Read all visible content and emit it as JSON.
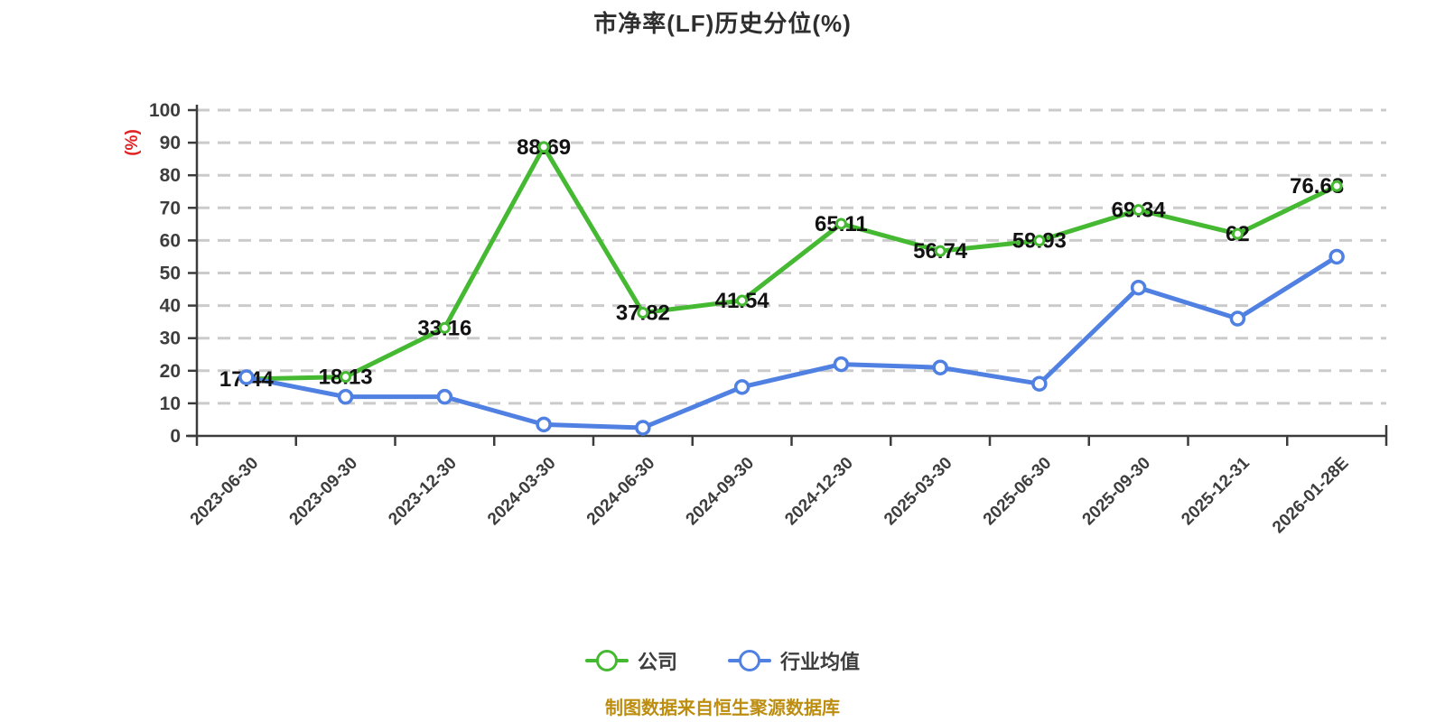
{
  "title": "市净率(LF)历史分位(%)",
  "y_axis": {
    "unit": "(%)",
    "unit_color": "#e02222",
    "ticks": [
      0,
      10,
      20,
      30,
      40,
      50,
      60,
      70,
      80,
      90,
      100
    ]
  },
  "legend": {
    "items": [
      {
        "label": "公司",
        "color": "#45b932"
      },
      {
        "label": "行业均值",
        "color": "#4f80e2"
      }
    ]
  },
  "footer": {
    "text": "制图数据来自恒生聚源数据库",
    "color": "#bd8d10"
  },
  "chart_data": {
    "type": "line",
    "categories": [
      "2023-06-30",
      "2023-09-30",
      "2023-12-30",
      "2024-03-30",
      "2024-06-30",
      "2024-09-30",
      "2024-12-30",
      "2025-03-30",
      "2025-06-30",
      "2025-09-30",
      "2025-12-31",
      "2026-01-28E"
    ],
    "series": [
      {
        "name": "公司",
        "color": "#45b932",
        "values": [
          17.44,
          18.13,
          33.16,
          88.69,
          37.82,
          41.54,
          65.11,
          56.74,
          59.93,
          69.34,
          62,
          76.68
        ],
        "show_labels": true
      },
      {
        "name": "行业均值",
        "color": "#4f80e2",
        "values": [
          18,
          12,
          12,
          3.5,
          2.5,
          15,
          22,
          21,
          16,
          45.5,
          36,
          55
        ],
        "show_labels": false
      }
    ],
    "ylim": [
      0,
      100
    ],
    "grid": "horizontal-dashed",
    "legend_position": "bottom"
  }
}
